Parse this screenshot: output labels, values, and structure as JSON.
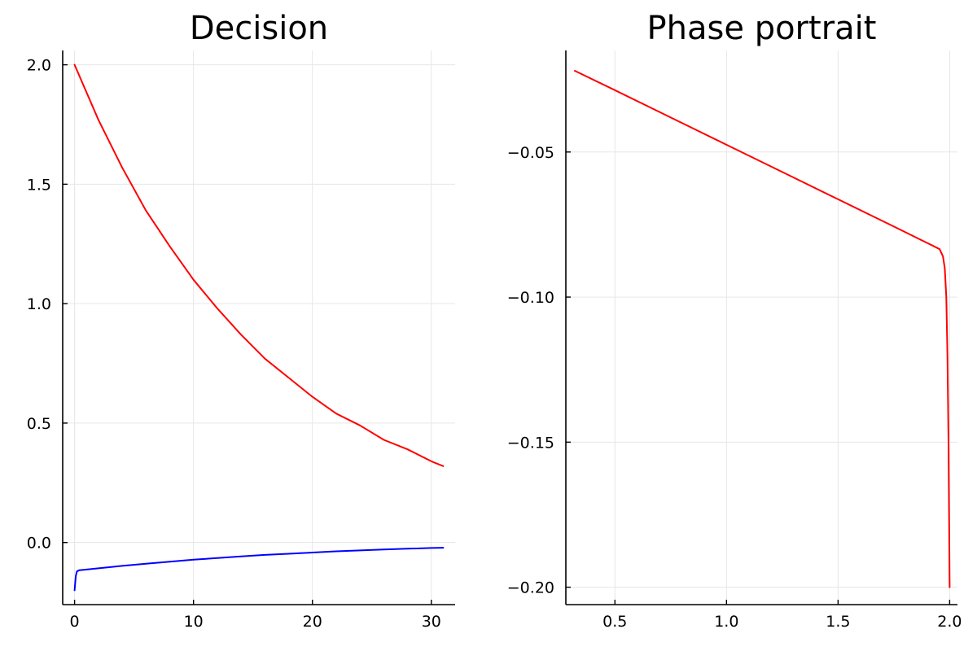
{
  "chart_data": [
    {
      "type": "line",
      "title": "Decision",
      "xlabel": "",
      "ylabel": "",
      "xlim": [
        -1.0,
        32.0
      ],
      "ylim": [
        -0.26,
        2.06
      ],
      "x_ticks": [
        0,
        10,
        20,
        30
      ],
      "x_tick_labels": [
        "0",
        "10",
        "20",
        "30"
      ],
      "y_ticks": [
        0.0,
        0.5,
        1.0,
        1.5,
        2.0
      ],
      "y_tick_labels": [
        "0.0",
        "0.5",
        "1.0",
        "1.5",
        "2.0"
      ],
      "grid": true,
      "legend": "none",
      "series": [
        {
          "color": "#ff0000",
          "x": [
            0,
            2,
            4,
            6,
            8,
            10,
            12,
            14,
            16,
            18,
            20,
            22,
            24,
            26,
            28,
            30,
            31
          ],
          "y": [
            2.0,
            1.77,
            1.57,
            1.39,
            1.24,
            1.1,
            0.98,
            0.87,
            0.77,
            0.69,
            0.61,
            0.54,
            0.49,
            0.43,
            0.39,
            0.34,
            0.32
          ]
        },
        {
          "color": "#0000ff",
          "x": [
            0,
            0.1,
            0.2,
            0.4,
            1,
            2,
            4,
            6,
            8,
            10,
            12,
            14,
            16,
            18,
            20,
            22,
            24,
            26,
            28,
            30,
            31
          ],
          "y": [
            -0.2,
            -0.14,
            -0.121,
            -0.116,
            -0.113,
            -0.108,
            -0.098,
            -0.089,
            -0.08,
            -0.072,
            -0.065,
            -0.058,
            -0.052,
            -0.047,
            -0.042,
            -0.037,
            -0.033,
            -0.029,
            -0.026,
            -0.023,
            -0.022
          ]
        }
      ]
    },
    {
      "type": "line",
      "title": "Phase portrait",
      "xlabel": "",
      "ylabel": "",
      "xlim": [
        0.28,
        2.035
      ],
      "ylim": [
        -0.206,
        -0.015
      ],
      "x_ticks": [
        0.5,
        1.0,
        1.5,
        2.0
      ],
      "x_tick_labels": [
        "0.5",
        "1.0",
        "1.5",
        "2.0"
      ],
      "y_ticks": [
        -0.2,
        -0.15,
        -0.1,
        -0.05
      ],
      "y_tick_labels": [
        "−0.20",
        "−0.15",
        "−0.10",
        "−0.05"
      ],
      "grid": true,
      "legend": "none",
      "series": [
        {
          "color": "#ff0000",
          "x": [
            0.32,
            0.5,
            0.75,
            1.0,
            1.25,
            1.5,
            1.75,
            1.93,
            1.955,
            1.97,
            1.978,
            1.985,
            1.99,
            1.995,
            2.0
          ],
          "y": [
            -0.022,
            -0.0287,
            -0.0381,
            -0.0475,
            -0.0569,
            -0.0663,
            -0.0757,
            -0.0825,
            -0.0835,
            -0.086,
            -0.09,
            -0.1,
            -0.12,
            -0.15,
            -0.2
          ]
        }
      ]
    }
  ]
}
